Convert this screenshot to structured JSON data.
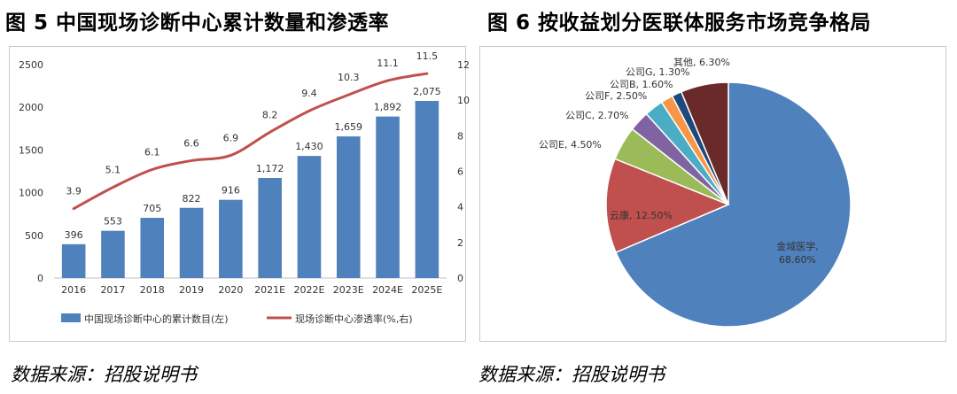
{
  "figures": {
    "left": {
      "title": "图 5 中国现场诊断中心累计数量和渗透率",
      "source": "数据来源：招股说明书"
    },
    "right": {
      "title": "图 6 按收益划分医联体服务市场竞争格局",
      "source": "数据来源：招股说明书"
    }
  },
  "colors": {
    "bar": "#4f81bd",
    "line": "#c0504d",
    "pie": [
      "#4f81bd",
      "#c0504d",
      "#9bbb59",
      "#8064a2",
      "#4bacc6",
      "#f79646",
      "#1f497d",
      "#6b2a2a"
    ]
  },
  "chart_data": [
    {
      "type": "bar",
      "title": "",
      "categories": [
        "2016",
        "2017",
        "2018",
        "2019",
        "2020",
        "2021E",
        "2022E",
        "2023E",
        "2024E",
        "2025E"
      ],
      "series": [
        {
          "name": "中国现场诊断中心的累计数目(左)",
          "type": "bar",
          "axis": "left",
          "values": [
            396,
            553,
            705,
            822,
            916,
            1172,
            1430,
            1659,
            1892,
            2075
          ],
          "labels": [
            "396",
            "553",
            "705",
            "822",
            "916",
            "1,172",
            "1,430",
            "1,659",
            "1,892",
            "2,075"
          ]
        },
        {
          "name": "现场诊断中心渗透率(%,右)",
          "type": "line",
          "axis": "right",
          "values": [
            3.9,
            5.1,
            6.1,
            6.6,
            6.9,
            8.2,
            9.4,
            10.3,
            11.1,
            11.5
          ],
          "labels": [
            "3.9",
            "5.1",
            "6.1",
            "6.6",
            "6.9",
            "8.2",
            "9.4",
            "10.3",
            "11.1",
            "11.5"
          ]
        }
      ],
      "y_left": {
        "lim": [
          0,
          2500
        ],
        "ticks": [
          "0",
          "500",
          "1000",
          "1500",
          "2000",
          "2500"
        ]
      },
      "y_right": {
        "lim": [
          0,
          12
        ],
        "ticks": [
          "0",
          "2",
          "4",
          "6",
          "8",
          "10",
          "12"
        ]
      },
      "grid": false,
      "legend": "bottom"
    },
    {
      "type": "pie",
      "title": "",
      "slices": [
        {
          "name": "金域医学",
          "value": 68.6,
          "label": "金域医学,\n68.60%"
        },
        {
          "name": "云康",
          "value": 12.5,
          "label": "云康, 12.50%"
        },
        {
          "name": "公司E",
          "value": 4.5,
          "label": "公司E, 4.50%"
        },
        {
          "name": "公司C",
          "value": 2.7,
          "label": "公司C, 2.70%"
        },
        {
          "name": "公司F",
          "value": 2.5,
          "label": "公司F, 2.50%"
        },
        {
          "name": "公司B",
          "value": 1.6,
          "label": "公司B, 1.60%"
        },
        {
          "name": "公司G",
          "value": 1.3,
          "label": "公司G, 1.30%"
        },
        {
          "name": "其他",
          "value": 6.3,
          "label": "其他, 6.30%"
        }
      ]
    }
  ]
}
